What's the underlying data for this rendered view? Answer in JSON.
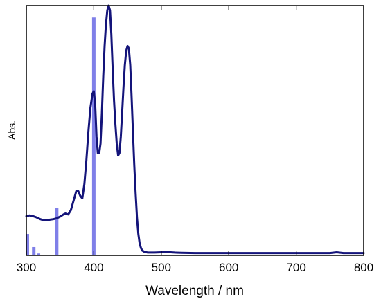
{
  "chart_data": {
    "type": "line",
    "title": "",
    "xlabel": "Wavelength / nm",
    "ylabel": "Abs.",
    "xlim": [
      300,
      800
    ],
    "ylim": [
      0,
      1.05
    ],
    "x_ticks": [
      300,
      400,
      500,
      600,
      700,
      800
    ],
    "x_tick_labels": [
      "300",
      "400",
      "500",
      "600",
      "700",
      "800"
    ],
    "y_ticks_shown": false,
    "grid": false,
    "legend": "none",
    "series": [
      {
        "kind": "line",
        "color": "#14147a",
        "x": [
          300,
          305,
          310,
          315,
          320,
          325,
          330,
          335,
          340,
          345,
          350,
          355,
          358,
          362,
          366,
          370,
          374,
          377,
          380,
          383,
          386,
          389,
          392,
          395,
          398,
          400,
          402,
          404,
          406,
          408,
          410,
          412,
          414,
          416,
          418,
          420,
          422,
          424,
          426,
          428,
          430,
          432,
          434,
          436,
          438,
          440,
          442,
          444,
          446,
          448,
          450,
          452,
          454,
          456,
          458,
          460,
          462,
          464,
          466,
          468,
          470,
          472,
          475,
          480,
          490,
          500,
          510,
          520,
          530,
          550,
          600,
          650,
          700,
          750,
          760,
          770,
          800
        ],
        "y": [
          0.165,
          0.168,
          0.165,
          0.16,
          0.153,
          0.148,
          0.148,
          0.15,
          0.152,
          0.156,
          0.163,
          0.172,
          0.176,
          0.172,
          0.19,
          0.23,
          0.27,
          0.27,
          0.25,
          0.24,
          0.3,
          0.4,
          0.52,
          0.62,
          0.68,
          0.69,
          0.64,
          0.5,
          0.43,
          0.43,
          0.47,
          0.6,
          0.75,
          0.88,
          0.97,
          1.03,
          1.05,
          1.03,
          0.93,
          0.78,
          0.65,
          0.55,
          0.47,
          0.42,
          0.43,
          0.5,
          0.6,
          0.71,
          0.8,
          0.86,
          0.88,
          0.87,
          0.8,
          0.67,
          0.52,
          0.38,
          0.26,
          0.16,
          0.09,
          0.05,
          0.03,
          0.02,
          0.015,
          0.012,
          0.012,
          0.013,
          0.014,
          0.012,
          0.011,
          0.01,
          0.01,
          0.01,
          0.01,
          0.01,
          0.013,
          0.01,
          0.01
        ]
      },
      {
        "kind": "stick",
        "color": "#7f7fe8",
        "x": [
          300,
          311,
          318,
          345,
          400
        ],
        "y": [
          0.09,
          0.035,
          0.008,
          0.2,
          1.0
        ]
      }
    ]
  }
}
